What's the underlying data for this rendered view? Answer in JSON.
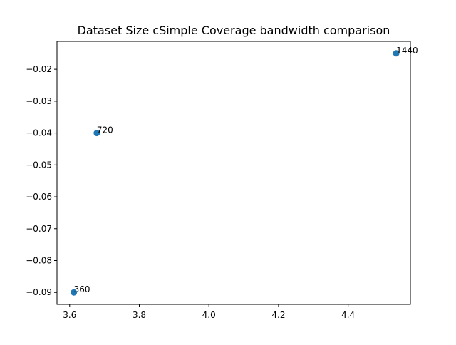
{
  "chart_data": {
    "type": "scatter",
    "title": "Dataset Size cSimple Coverage bandwidth comparison",
    "xlabel": "",
    "ylabel": "",
    "xlim": [
      3.5636,
      4.5788
    ],
    "ylim": [
      -0.09375,
      -0.01125
    ],
    "xticks": [
      {
        "value": 3.6,
        "label": "3.6"
      },
      {
        "value": 3.8,
        "label": "3.8"
      },
      {
        "value": 4.0,
        "label": "4.0"
      },
      {
        "value": 4.2,
        "label": "4.2"
      },
      {
        "value": 4.4,
        "label": "4.4"
      }
    ],
    "yticks": [
      {
        "value": -0.02,
        "label": "−0.02"
      },
      {
        "value": -0.03,
        "label": "−0.03"
      },
      {
        "value": -0.04,
        "label": "−0.04"
      },
      {
        "value": -0.05,
        "label": "−0.05"
      },
      {
        "value": -0.06,
        "label": "−0.06"
      },
      {
        "value": -0.07,
        "label": "−0.07"
      },
      {
        "value": -0.08,
        "label": "−0.08"
      },
      {
        "value": -0.09,
        "label": "−0.09"
      }
    ],
    "points": [
      {
        "x": 3.612,
        "y": -0.09,
        "label": "360"
      },
      {
        "x": 3.678,
        "y": -0.04,
        "label": "720"
      },
      {
        "x": 4.538,
        "y": -0.015,
        "label": "1440"
      }
    ],
    "marker_color": "#1f77b4",
    "grid": false,
    "legend": "none"
  }
}
